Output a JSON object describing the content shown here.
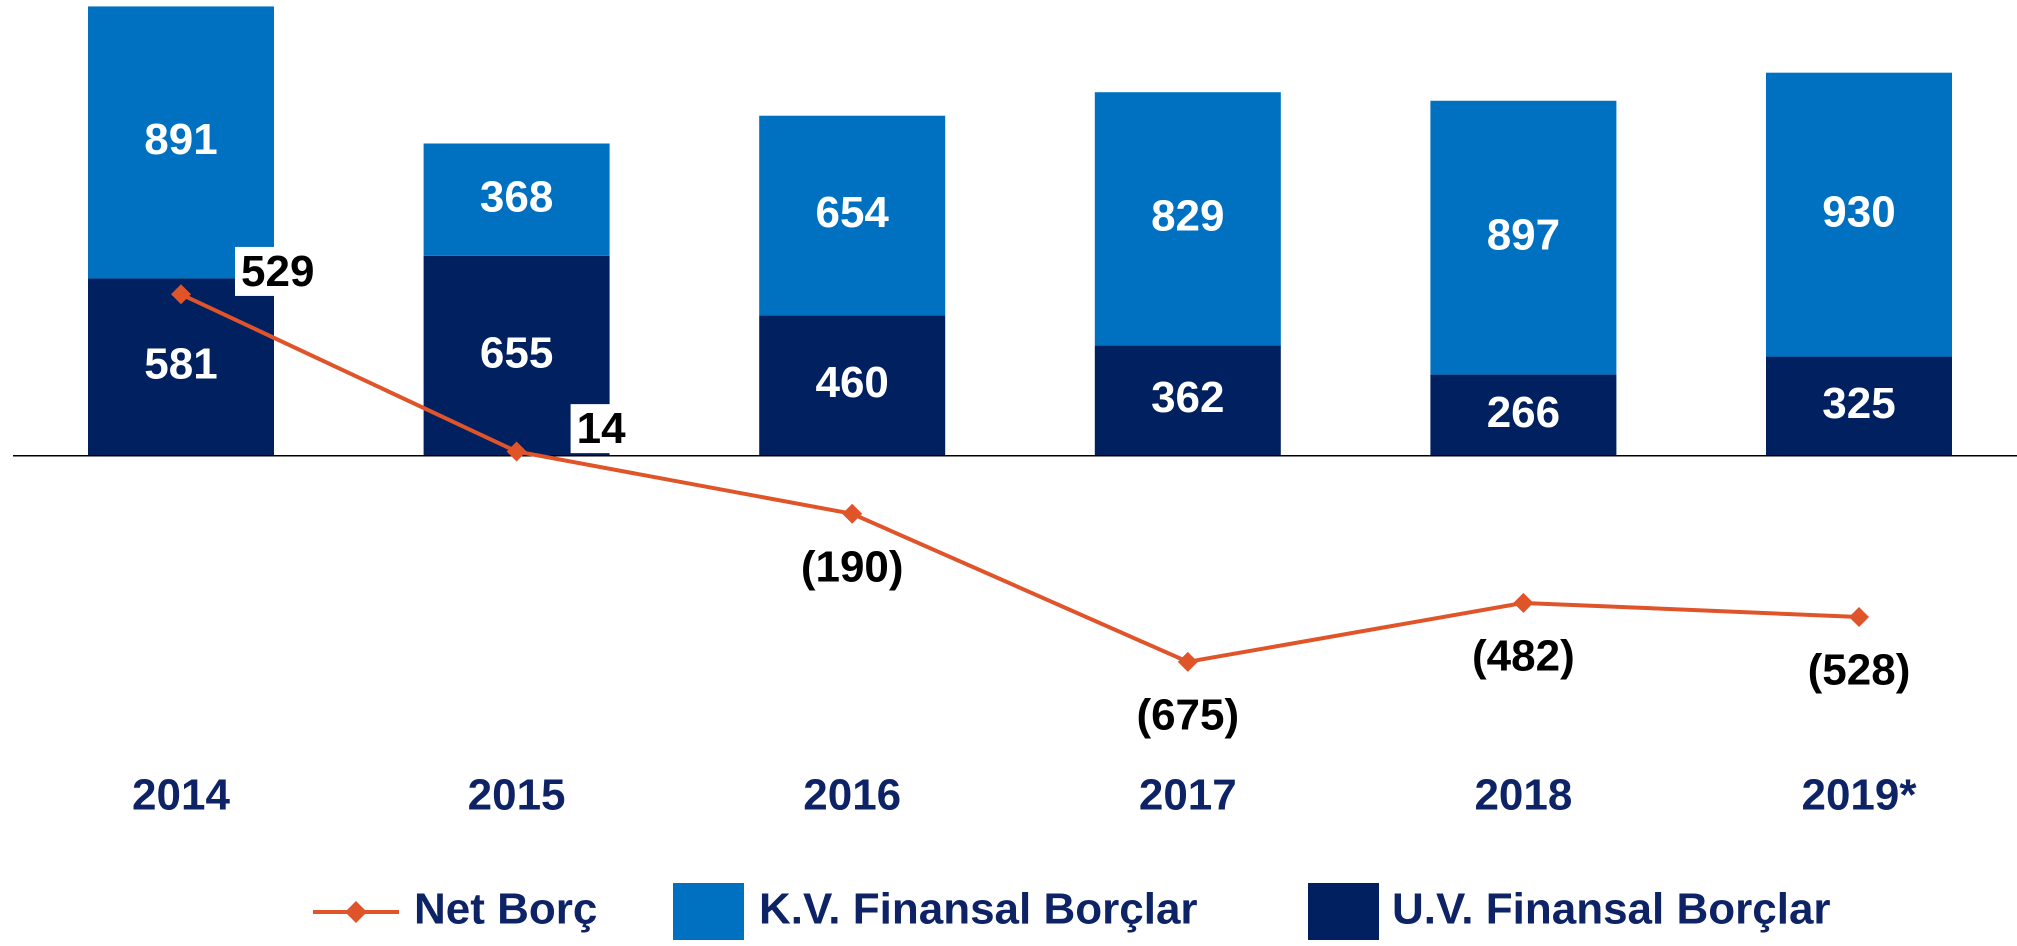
{
  "chart_data": {
    "type": "bar-line",
    "categories": [
      "2014",
      "2015",
      "2016",
      "2017",
      "2018",
      "2019*"
    ],
    "series": [
      {
        "name": "Net Borç",
        "type": "line",
        "color": "#e0542a",
        "values": [
          529,
          14,
          -190,
          -675,
          -482,
          -528
        ],
        "value_labels": [
          "529",
          "14",
          "(190)",
          "(675)",
          "(482)",
          "(528)"
        ]
      },
      {
        "name": "K.V. Finansal Borçlar",
        "type": "bar",
        "color": "#0070c0",
        "values": [
          891,
          368,
          654,
          829,
          897,
          930
        ]
      },
      {
        "name": "U.V. Finansal Borçlar",
        "type": "bar",
        "color": "#002060",
        "values": [
          581,
          655,
          460,
          362,
          266,
          325
        ]
      }
    ],
    "stacked": true,
    "ylim": [
      -800,
      1480
    ]
  }
}
